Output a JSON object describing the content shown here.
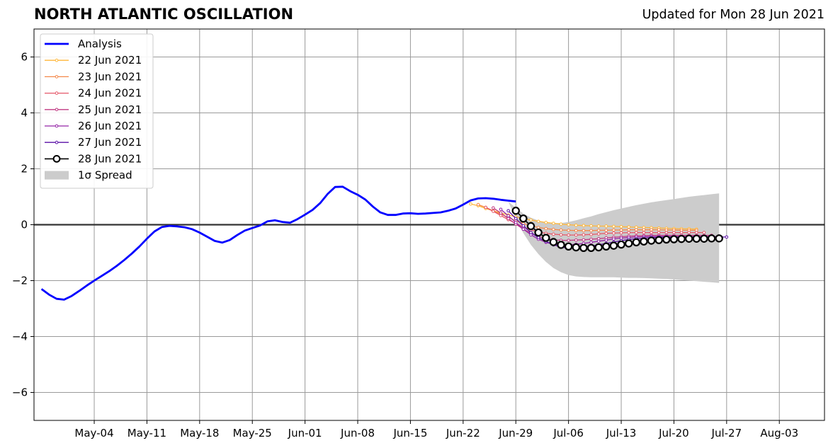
{
  "header": {
    "title": "NORTH ATLANTIC OSCILLATION",
    "updated": "Updated for Mon 28 Jun 2021"
  },
  "chart_data": {
    "type": "line",
    "title": "NORTH ATLANTIC OSCILLATION",
    "subtitle": "Updated for Mon 28 Jun 2021",
    "xlabel": "",
    "ylabel": "",
    "xlim": [
      "2021-04-26",
      "2021-08-09"
    ],
    "ylim": [
      -7,
      7
    ],
    "yticks": [
      -6,
      -4,
      -2,
      0,
      2,
      4,
      6
    ],
    "ytick_labels": [
      "−6",
      "−4",
      "−2",
      "0",
      "2",
      "4",
      "6"
    ],
    "xticks": [
      "2021-05-04",
      "2021-05-11",
      "2021-05-18",
      "2021-05-25",
      "2021-06-01",
      "2021-06-08",
      "2021-06-15",
      "2021-06-22",
      "2021-06-29",
      "2021-07-06",
      "2021-07-13",
      "2021-07-20",
      "2021-07-27",
      "2021-08-03"
    ],
    "xtick_labels": [
      "May-04",
      "May-11",
      "May-18",
      "May-25",
      "Jun-01",
      "Jun-08",
      "Jun-15",
      "Jun-22",
      "Jun-29",
      "Jul-06",
      "Jul-13",
      "Jul-20",
      "Jul-27",
      "Aug-03"
    ],
    "grid": true,
    "legend_position": "top-left",
    "zero_line": 0,
    "analysis": {
      "name": "Analysis",
      "color": "#0000ff",
      "start": "2021-04-27",
      "values": [
        -2.3,
        -2.5,
        -2.65,
        -2.68,
        -2.55,
        -2.37,
        -2.18,
        -2.0,
        -1.83,
        -1.66,
        -1.47,
        -1.26,
        -1.03,
        -0.78,
        -0.5,
        -0.24,
        -0.08,
        -0.04,
        -0.06,
        -0.09,
        -0.16,
        -0.28,
        -0.43,
        -0.58,
        -0.64,
        -0.55,
        -0.37,
        -0.21,
        -0.12,
        -0.03,
        0.12,
        0.16,
        0.1,
        0.07,
        0.2,
        0.36,
        0.53,
        0.77,
        1.1,
        1.35,
        1.36,
        1.2,
        1.07,
        0.9,
        0.65,
        0.44,
        0.35,
        0.35,
        0.4,
        0.41,
        0.39,
        0.4,
        0.42,
        0.44,
        0.5,
        0.58,
        0.72,
        0.87,
        0.94,
        0.95,
        0.93,
        0.89,
        0.86,
        0.83
      ]
    },
    "forecasts": [
      {
        "name": "22 Jun 2021",
        "color": "#ffb739",
        "start": "2021-06-23",
        "values": [
          0.74,
          0.68,
          0.58,
          0.5,
          0.42,
          0.35,
          0.28,
          0.22,
          0.17,
          0.12,
          0.08,
          0.05,
          0.02,
          0.0,
          -0.02,
          -0.03,
          -0.04,
          -0.05,
          -0.05,
          -0.06,
          -0.07,
          -0.08,
          -0.09,
          -0.1,
          -0.11,
          -0.12,
          -0.13,
          -0.14,
          -0.15,
          -0.15,
          -0.16
        ]
      },
      {
        "name": "23 Jun 2021",
        "color": "#f48849",
        "start": "2021-06-24",
        "values": [
          0.72,
          0.62,
          0.5,
          0.38,
          0.26,
          0.14,
          0.04,
          -0.04,
          -0.1,
          -0.14,
          -0.17,
          -0.19,
          -0.2,
          -0.21,
          -0.21,
          -0.21,
          -0.2,
          -0.2,
          -0.19,
          -0.19,
          -0.18,
          -0.18,
          -0.18,
          -0.18,
          -0.18,
          -0.19,
          -0.19,
          -0.2,
          -0.2,
          -0.2
        ]
      },
      {
        "name": "24 Jun 2021",
        "color": "#e5596a",
        "start": "2021-06-25",
        "values": [
          0.62,
          0.48,
          0.33,
          0.18,
          0.05,
          -0.08,
          -0.18,
          -0.26,
          -0.31,
          -0.34,
          -0.36,
          -0.37,
          -0.37,
          -0.36,
          -0.35,
          -0.33,
          -0.31,
          -0.3,
          -0.29,
          -0.28,
          -0.28,
          -0.28,
          -0.28,
          -0.28,
          -0.28,
          -0.28,
          -0.28,
          -0.28,
          -0.28,
          -0.28
        ]
      },
      {
        "name": "25 Jun 2021",
        "color": "#c03a83",
        "start": "2021-06-26",
        "values": [
          0.6,
          0.42,
          0.22,
          0.02,
          -0.16,
          -0.3,
          -0.42,
          -0.5,
          -0.54,
          -0.56,
          -0.56,
          -0.55,
          -0.54,
          -0.52,
          -0.5,
          -0.47,
          -0.45,
          -0.43,
          -0.41,
          -0.4,
          -0.39,
          -0.38,
          -0.38,
          -0.38,
          -0.38,
          -0.38,
          -0.38,
          -0.38,
          -0.38,
          -0.38
        ]
      },
      {
        "name": "26 Jun 2021",
        "color": "#9424a6",
        "start": "2021-06-27",
        "values": [
          0.55,
          0.32,
          0.08,
          -0.16,
          -0.36,
          -0.52,
          -0.63,
          -0.7,
          -0.73,
          -0.72,
          -0.7,
          -0.67,
          -0.63,
          -0.59,
          -0.55,
          -0.51,
          -0.48,
          -0.46,
          -0.44,
          -0.43,
          -0.42,
          -0.42,
          -0.42,
          -0.42,
          -0.42,
          -0.42,
          -0.42,
          -0.42,
          -0.42,
          -0.42
        ]
      },
      {
        "name": "27 Jun 2021",
        "color": "#5a0fa6",
        "start": "2021-06-28",
        "values": [
          0.5,
          0.22,
          -0.04,
          -0.28,
          -0.46,
          -0.6,
          -0.72,
          -0.8,
          -0.84,
          -0.83,
          -0.8,
          -0.76,
          -0.72,
          -0.67,
          -0.62,
          -0.57,
          -0.53,
          -0.5,
          -0.48,
          -0.46,
          -0.45,
          -0.44,
          -0.44,
          -0.44,
          -0.44,
          -0.44,
          -0.44,
          -0.44,
          -0.44,
          -0.44
        ]
      },
      {
        "name": "28 Jun 2021",
        "color": "#000000",
        "start": "2021-06-29",
        "values": [
          0.5,
          0.22,
          -0.05,
          -0.28,
          -0.47,
          -0.62,
          -0.72,
          -0.78,
          -0.81,
          -0.83,
          -0.83,
          -0.81,
          -0.78,
          -0.75,
          -0.71,
          -0.67,
          -0.63,
          -0.6,
          -0.57,
          -0.55,
          -0.53,
          -0.52,
          -0.51,
          -0.5,
          -0.5,
          -0.5,
          -0.49,
          -0.49
        ]
      }
    ],
    "spread": {
      "name": "1σ Spread",
      "color": "#cccccc",
      "start": "2021-06-28",
      "upper": [
        0.83,
        0.6,
        0.4,
        0.25,
        0.15,
        0.08,
        0.05,
        0.06,
        0.1,
        0.16,
        0.23,
        0.3,
        0.38,
        0.45,
        0.52,
        0.58,
        0.64,
        0.7,
        0.75,
        0.8,
        0.84,
        0.88,
        0.92,
        0.96,
        1.0,
        1.03,
        1.06,
        1.09,
        1.12
      ],
      "lower": [
        0.83,
        0.2,
        -0.3,
        -0.72,
        -1.05,
        -1.33,
        -1.55,
        -1.7,
        -1.8,
        -1.85,
        -1.87,
        -1.88,
        -1.88,
        -1.88,
        -1.88,
        -1.89,
        -1.9,
        -1.9,
        -1.91,
        -1.92,
        -1.93,
        -1.94,
        -1.96,
        -1.98,
        -2.0,
        -2.02,
        -2.04,
        -2.06,
        -2.08
      ]
    },
    "legend": [
      "Analysis",
      "22 Jun 2021",
      "23 Jun 2021",
      "24 Jun 2021",
      "25 Jun 2021",
      "26 Jun 2021",
      "27 Jun 2021",
      "28 Jun 2021",
      "1σ Spread"
    ]
  }
}
